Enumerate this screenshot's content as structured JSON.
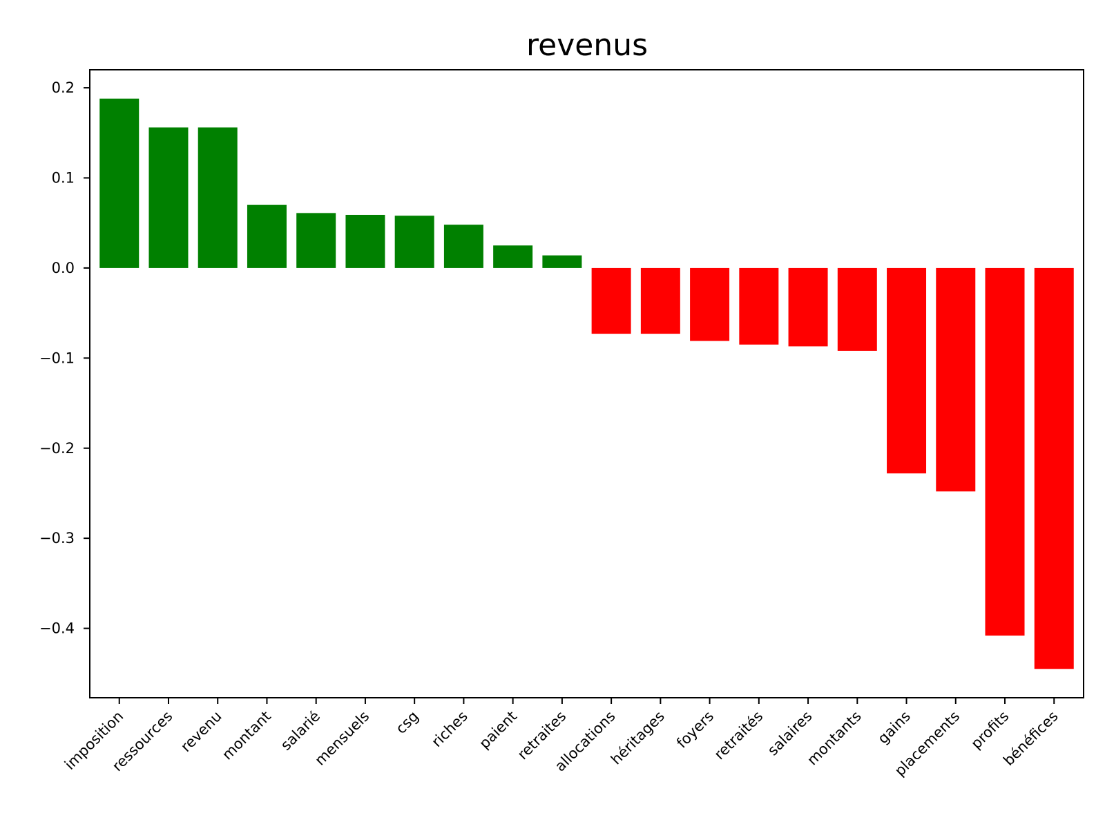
{
  "chart_data": {
    "type": "bar",
    "title": "revenus",
    "xlabel": "",
    "ylabel": "",
    "categories": [
      "imposition",
      "ressources",
      "revenu",
      "montant",
      "salarié",
      "mensuels",
      "csg",
      "riches",
      "paient",
      "retraites",
      "allocations",
      "héritages",
      "foyers",
      "retraités",
      "salaires",
      "montants",
      "gains",
      "placements",
      "profits",
      "bénéfices"
    ],
    "values": [
      0.188,
      0.156,
      0.156,
      0.07,
      0.061,
      0.059,
      0.058,
      0.048,
      0.025,
      0.014,
      -0.073,
      -0.073,
      -0.081,
      -0.085,
      -0.087,
      -0.092,
      -0.228,
      -0.248,
      -0.408,
      -0.445
    ],
    "ylim": [
      -0.477,
      0.22
    ],
    "yticks": [
      0.2,
      0.1,
      0.0,
      -0.1,
      -0.2,
      -0.3,
      -0.4
    ],
    "ytick_labels": [
      "0.2",
      "0.1",
      "0.0",
      "−0.1",
      "−0.2",
      "−0.3",
      "−0.4"
    ],
    "grid": false,
    "colors": {
      "positive": "#008000",
      "negative": "#ff0000"
    }
  }
}
